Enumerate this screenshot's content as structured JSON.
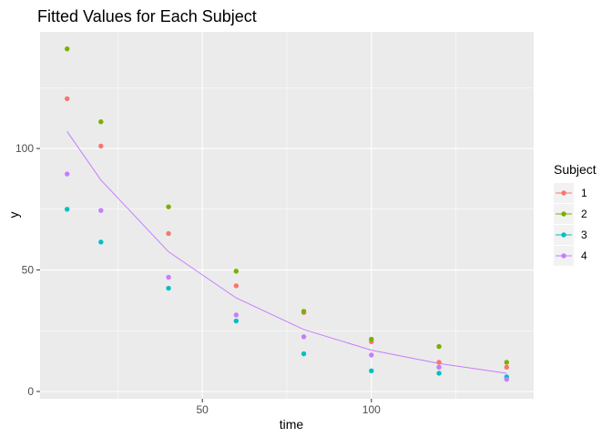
{
  "chart_data": {
    "type": "scatter",
    "title": "Fitted Values for Each Subject",
    "xlabel": "time",
    "ylabel": "y",
    "xlim": [
      2,
      148
    ],
    "ylim": [
      -3,
      148
    ],
    "x_ticks": [
      50,
      100
    ],
    "y_ticks": [
      0,
      50,
      100
    ],
    "grid": true,
    "legend": {
      "title": "Subject",
      "placement": "right"
    },
    "series": [
      {
        "name": "1",
        "color": "#F8766D",
        "x": [
          10,
          20,
          40,
          60,
          80,
          100,
          120,
          140
        ],
        "y": [
          120.5,
          101,
          65,
          43.5,
          32.5,
          20.5,
          12,
          10
        ]
      },
      {
        "name": "2",
        "color": "#7CAE00",
        "x": [
          10,
          20,
          40,
          60,
          80,
          100,
          120,
          140
        ],
        "y": [
          141,
          111,
          76,
          49.5,
          33,
          21.5,
          18.5,
          12
        ]
      },
      {
        "name": "3",
        "color": "#00BFC4",
        "x": [
          10,
          20,
          40,
          60,
          80,
          100,
          120,
          140
        ],
        "y": [
          75,
          61.5,
          42.5,
          29,
          15.5,
          8.5,
          7.5,
          6
        ]
      },
      {
        "name": "4",
        "color": "#C77CFF",
        "x": [
          10,
          20,
          40,
          60,
          80,
          100,
          120,
          140
        ],
        "y": [
          89.5,
          74.5,
          47,
          31.5,
          22.5,
          15,
          10,
          5
        ]
      }
    ],
    "fitted_line": {
      "color": "#C77CFF",
      "x": [
        10,
        20,
        40,
        60,
        80,
        100,
        120,
        140
      ],
      "y": [
        107,
        87,
        57.5,
        38.5,
        25.5,
        17,
        11.5,
        7.5
      ]
    }
  }
}
